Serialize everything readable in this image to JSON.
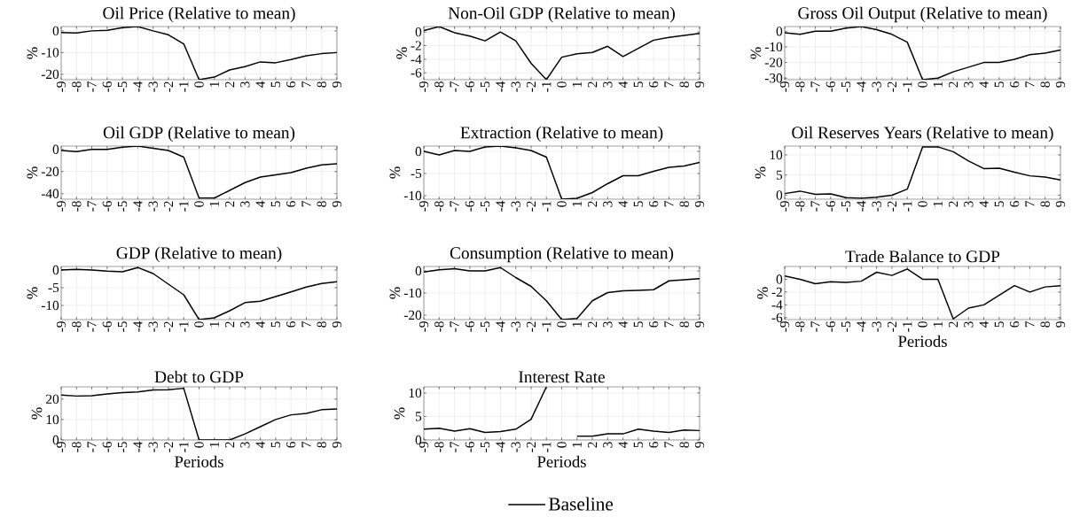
{
  "chart_data": [
    {
      "type": "line",
      "title": "Oil Price (Relative to mean)",
      "ylabel": "%",
      "x": [
        -9,
        -8,
        -7,
        -6,
        -5,
        -4,
        -3,
        -2,
        -1,
        0,
        1,
        2,
        3,
        4,
        5,
        6,
        7,
        8,
        9
      ],
      "xlim": [
        -9,
        9
      ],
      "xticks": [
        -9,
        -8,
        -7,
        -6,
        -5,
        -4,
        -3,
        -2,
        -1,
        0,
        1,
        2,
        3,
        4,
        5,
        6,
        7,
        8,
        9
      ],
      "ylim": [
        -22.5,
        2
      ],
      "yticks": [
        -20,
        -10,
        0
      ],
      "grid": true,
      "series": [
        {
          "color": "#000000",
          "values": [
            -0.8,
            -1,
            0,
            0.3,
            1.5,
            2,
            0,
            -1.8,
            -6,
            -22.5,
            -21.3,
            -18,
            -16.5,
            -14.3,
            -14.7,
            -13.2,
            -11.5,
            -10.5,
            -10
          ]
        }
      ]
    },
    {
      "type": "line",
      "title": "Non-Oil GDP (Relative to mean)",
      "ylabel": "%",
      "x": [
        -9,
        -8,
        -7,
        -6,
        -5,
        -4,
        -3,
        -2,
        -1,
        0,
        1,
        2,
        3,
        4,
        5,
        6,
        7,
        8,
        9
      ],
      "xlim": [
        -9,
        9
      ],
      "xticks": [
        -9,
        -8,
        -7,
        -6,
        -5,
        -4,
        -3,
        -2,
        -1,
        0,
        1,
        2,
        3,
        4,
        5,
        6,
        7,
        8,
        9
      ],
      "ylim": [
        -7,
        0.8
      ],
      "yticks": [
        -6,
        -4,
        -2,
        0
      ],
      "grid": true,
      "series": [
        {
          "color": "#000000",
          "values": [
            0.2,
            0.8,
            -0.1,
            -0.6,
            -1.3,
            0,
            -1.3,
            -4.6,
            -7,
            -3.7,
            -3.2,
            -3,
            -2.1,
            -3.6,
            -2.4,
            -1.2,
            -0.8,
            -0.5,
            -0.2
          ]
        }
      ]
    },
    {
      "type": "line",
      "title": "Gross Oil Output (Relative to mean)",
      "ylabel": "%",
      "x": [
        -9,
        -8,
        -7,
        -6,
        -5,
        -4,
        -3,
        -2,
        -1,
        0,
        1,
        2,
        3,
        4,
        5,
        6,
        7,
        8,
        9
      ],
      "xlim": [
        -9,
        9
      ],
      "xticks": [
        -9,
        -8,
        -7,
        -6,
        -5,
        -4,
        -3,
        -2,
        -1,
        0,
        1,
        2,
        3,
        4,
        5,
        6,
        7,
        8,
        9
      ],
      "ylim": [
        -31,
        3
      ],
      "yticks": [
        -30,
        -20,
        -10,
        0
      ],
      "grid": true,
      "series": [
        {
          "color": "#000000",
          "values": [
            -1,
            -2,
            0,
            0,
            2,
            3,
            1,
            -2,
            -7,
            -31,
            -30,
            -26,
            -23,
            -20,
            -20,
            -18,
            -15,
            -14,
            -12
          ]
        }
      ]
    },
    {
      "type": "line",
      "title": "Oil GDP (Relative to mean)",
      "ylabel": "%",
      "x": [
        -9,
        -8,
        -7,
        -6,
        -5,
        -4,
        -3,
        -2,
        -1,
        0,
        1,
        2,
        3,
        4,
        5,
        6,
        7,
        8,
        9
      ],
      "xlim": [
        -9,
        9
      ],
      "xticks": [
        -9,
        -8,
        -7,
        -6,
        -5,
        -4,
        -3,
        -2,
        -1,
        0,
        1,
        2,
        3,
        4,
        5,
        6,
        7,
        8,
        9
      ],
      "ylim": [
        -45,
        3
      ],
      "yticks": [
        -40,
        -20,
        0
      ],
      "grid": true,
      "series": [
        {
          "color": "#000000",
          "values": [
            -1,
            -2,
            0,
            0,
            2,
            3,
            1,
            -1,
            -7,
            -44,
            -44,
            -37,
            -30,
            -25,
            -23,
            -21,
            -17,
            -14,
            -13
          ]
        }
      ]
    },
    {
      "type": "line",
      "title": "Extraction (Relative to mean)",
      "ylabel": "%",
      "x": [
        -9,
        -8,
        -7,
        -6,
        -5,
        -4,
        -3,
        -2,
        -1,
        0,
        1,
        2,
        3,
        4,
        5,
        6,
        7,
        8,
        9
      ],
      "xlim": [
        -9,
        9
      ],
      "xticks": [
        -9,
        -8,
        -7,
        -6,
        -5,
        -4,
        -3,
        -2,
        -1,
        0,
        1,
        2,
        3,
        4,
        5,
        6,
        7,
        8,
        9
      ],
      "ylim": [
        -10.8,
        1.2
      ],
      "yticks": [
        -10,
        -5,
        0
      ],
      "grid": true,
      "series": [
        {
          "color": "#000000",
          "values": [
            0,
            -0.8,
            0.2,
            0,
            1,
            1.2,
            0.8,
            0.2,
            -1.3,
            -10.8,
            -10.6,
            -9.3,
            -7.3,
            -5.5,
            -5.5,
            -4.5,
            -3.6,
            -3.3,
            -2.5
          ]
        }
      ]
    },
    {
      "type": "line",
      "title": "Oil Reserves Years (Relative to mean)",
      "ylabel": "%",
      "x": [
        -9,
        -8,
        -7,
        -6,
        -5,
        -4,
        -3,
        -2,
        -1,
        0,
        1,
        2,
        3,
        4,
        5,
        6,
        7,
        8,
        9
      ],
      "xlim": [
        -9,
        9
      ],
      "xticks": [
        -9,
        -8,
        -7,
        -6,
        -5,
        -4,
        -3,
        -2,
        -1,
        0,
        1,
        2,
        3,
        4,
        5,
        6,
        7,
        8,
        9
      ],
      "ylim": [
        -1,
        12.2
      ],
      "yticks": [
        0,
        5,
        10
      ],
      "grid": true,
      "series": [
        {
          "color": "#000000",
          "values": [
            0.4,
            1,
            0.2,
            0.3,
            -0.6,
            -0.8,
            -0.5,
            0,
            1.5,
            12,
            12,
            10.8,
            8.5,
            6.6,
            6.7,
            5.7,
            4.8,
            4.5,
            3.8
          ]
        }
      ]
    },
    {
      "type": "line",
      "title": "GDP (Relative to mean)",
      "ylabel": "%",
      "x": [
        -9,
        -8,
        -7,
        -6,
        -5,
        -4,
        -3,
        -2,
        -1,
        0,
        1,
        2,
        3,
        4,
        5,
        6,
        7,
        8,
        9
      ],
      "xlim": [
        -9,
        9
      ],
      "xticks": [
        -9,
        -8,
        -7,
        -6,
        -5,
        -4,
        -3,
        -2,
        -1,
        0,
        1,
        2,
        3,
        4,
        5,
        6,
        7,
        8,
        9
      ],
      "ylim": [
        -14,
        1
      ],
      "yticks": [
        -10,
        -5,
        0
      ],
      "grid": true,
      "series": [
        {
          "color": "#000000",
          "values": [
            0,
            0.2,
            0,
            -0.3,
            -0.5,
            0.7,
            -1,
            -4,
            -7,
            -14,
            -13.5,
            -11.5,
            -9.2,
            -8.8,
            -7.5,
            -6.2,
            -4.8,
            -3.8,
            -3.3
          ]
        }
      ]
    },
    {
      "type": "line",
      "title": "Consumption (Relative to mean)",
      "ylabel": "%",
      "x": [
        -9,
        -8,
        -7,
        -6,
        -5,
        -4,
        -3,
        -2,
        -1,
        0,
        1,
        2,
        3,
        4,
        5,
        6,
        7,
        8,
        9
      ],
      "xlim": [
        -9,
        9
      ],
      "xticks": [
        -9,
        -8,
        -7,
        -6,
        -5,
        -4,
        -3,
        -2,
        -1,
        0,
        1,
        2,
        3,
        4,
        5,
        6,
        7,
        8,
        9
      ],
      "ylim": [
        -22,
        2
      ],
      "yticks": [
        -20,
        -10,
        0
      ],
      "grid": true,
      "series": [
        {
          "color": "#000000",
          "values": [
            -0.5,
            0.5,
            1,
            0,
            0,
            1.5,
            -3,
            -7,
            -13.5,
            -22,
            -21.5,
            -13.5,
            -9.8,
            -9,
            -8.8,
            -8.5,
            -4.5,
            -4,
            -3.5
          ]
        }
      ]
    },
    {
      "type": "line",
      "title": "Trade Balance to GDP",
      "xlabel": "Periods",
      "ylabel": "%",
      "x": [
        -9,
        -8,
        -7,
        -6,
        -5,
        -4,
        -3,
        -2,
        -1,
        0,
        1,
        2,
        3,
        4,
        5,
        6,
        7,
        8,
        9
      ],
      "xlim": [
        -9,
        9
      ],
      "xticks": [
        -9,
        -8,
        -7,
        -6,
        -5,
        -4,
        -3,
        -2,
        -1,
        0,
        1,
        2,
        3,
        4,
        5,
        6,
        7,
        8,
        9
      ],
      "ylim": [
        -6.3,
        2
      ],
      "yticks": [
        -6,
        -4,
        -2,
        0
      ],
      "grid": true,
      "series": [
        {
          "color": "#000000",
          "values": [
            0.5,
            0,
            -0.7,
            -0.4,
            -0.5,
            -0.3,
            1.1,
            0.6,
            1.6,
            0,
            0,
            -6.2,
            -4.5,
            -4,
            -2.5,
            -1,
            -2,
            -1.2,
            -1
          ]
        }
      ]
    },
    {
      "type": "line",
      "title": "Debt to GDP",
      "xlabel": "Periods",
      "ylabel": "%",
      "x": [
        -9,
        -8,
        -7,
        -6,
        -5,
        -4,
        -3,
        -2,
        -1,
        0,
        1,
        2,
        3,
        4,
        5,
        6,
        7,
        8,
        9
      ],
      "xlim": [
        -9,
        9
      ],
      "xticks": [
        -9,
        -8,
        -7,
        -6,
        -5,
        -4,
        -3,
        -2,
        -1,
        0,
        1,
        2,
        3,
        4,
        5,
        6,
        7,
        8,
        9
      ],
      "ylim": [
        0,
        26
      ],
      "yticks": [
        0,
        10,
        20
      ],
      "grid": true,
      "series": [
        {
          "color": "#000000",
          "values": [
            22,
            21.5,
            21.7,
            22.5,
            23.2,
            23.5,
            24.5,
            24.6,
            25.3,
            0,
            0,
            0,
            3,
            6.5,
            10,
            12.3,
            13,
            14.8,
            15.2
          ]
        }
      ]
    },
    {
      "type": "line",
      "title": "Interest Rate",
      "xlabel": "Periods",
      "ylabel": "%",
      "x": [
        -9,
        -8,
        -7,
        -6,
        -5,
        -4,
        -3,
        -2,
        -1,
        0,
        1,
        2,
        3,
        4,
        5,
        6,
        7,
        8,
        9
      ],
      "xlim": [
        -9,
        9
      ],
      "xticks": [
        -9,
        -8,
        -7,
        -6,
        -5,
        -4,
        -3,
        -2,
        -1,
        0,
        1,
        2,
        3,
        4,
        5,
        6,
        7,
        8,
        9
      ],
      "ylim": [
        0,
        11.3
      ],
      "yticks": [
        0,
        5,
        10
      ],
      "grid": true,
      "legend": "bottom",
      "series": [
        {
          "name": "Baseline",
          "color": "#000000",
          "values": [
            2.3,
            2.5,
            1.9,
            2.4,
            1.6,
            1.8,
            2.3,
            4.4,
            11.3,
            null,
            0.8,
            0.8,
            1.3,
            1.3,
            2.3,
            1.9,
            1.6,
            2.1,
            2.0
          ]
        }
      ]
    }
  ]
}
